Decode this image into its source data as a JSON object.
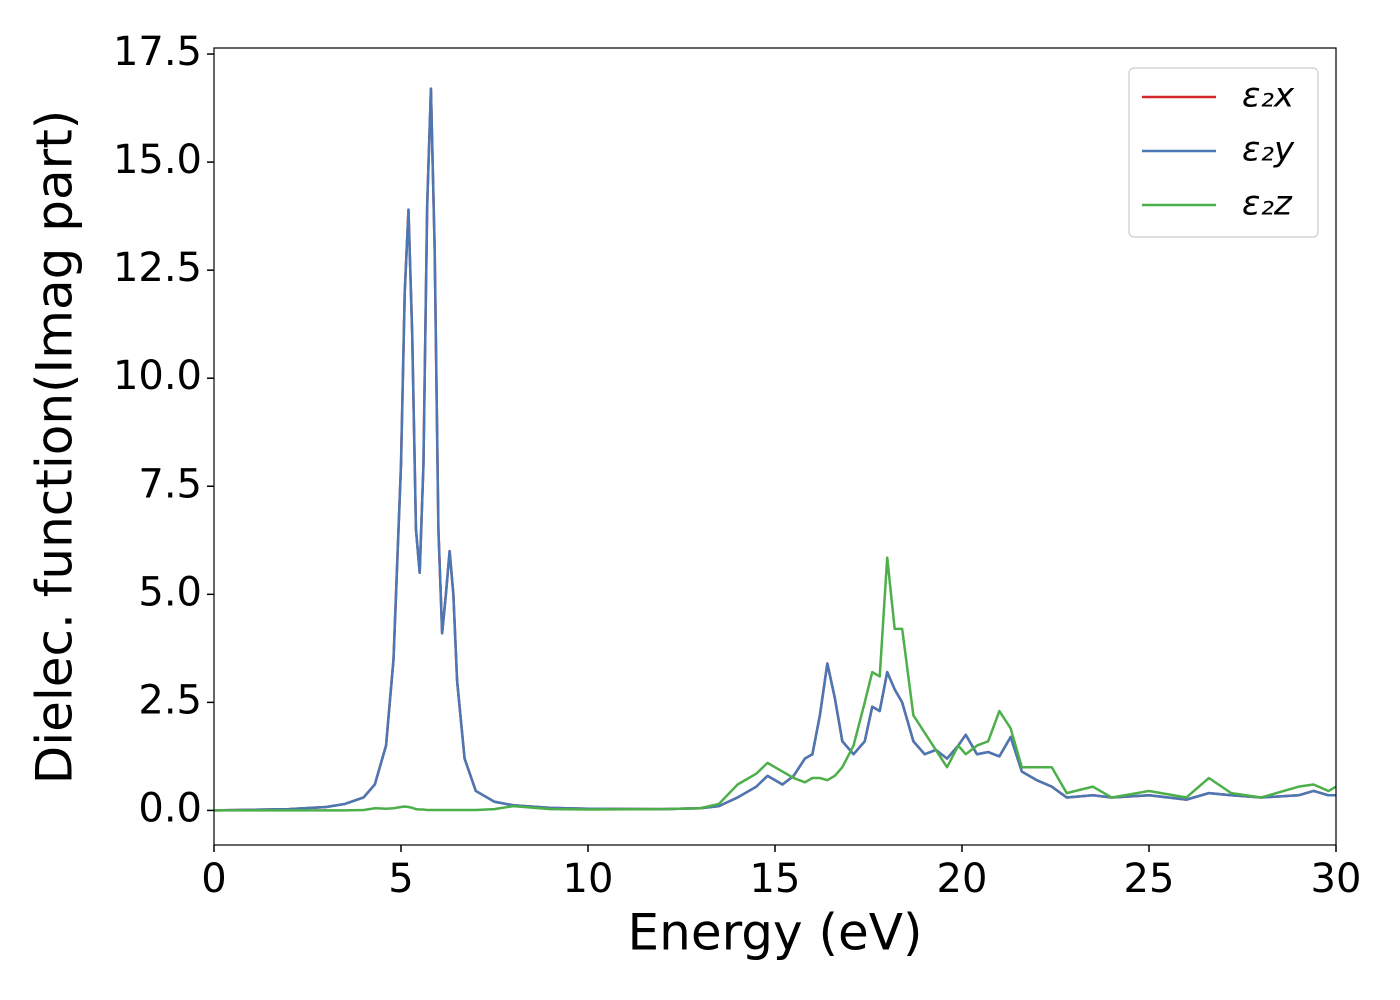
{
  "chart_data": {
    "type": "line",
    "xlabel": "Energy (eV)",
    "ylabel": "Dielec. function(Imag part)",
    "x": [
      0,
      2,
      3,
      3.5,
      4,
      4.3,
      4.6,
      4.8,
      5.0,
      5.1,
      5.2,
      5.3,
      5.4,
      5.5,
      5.6,
      5.7,
      5.8,
      5.9,
      6.0,
      6.1,
      6.2,
      6.3,
      6.4,
      6.5,
      6.7,
      7.0,
      7.5,
      8,
      9,
      10,
      12,
      13,
      13.5,
      14,
      14.5,
      14.8,
      15.2,
      15.5,
      15.8,
      16,
      16.2,
      16.4,
      16.6,
      16.8,
      17.1,
      17.4,
      17.6,
      17.8,
      18.0,
      18.2,
      18.4,
      18.7,
      19,
      19.3,
      19.6,
      19.9,
      20.1,
      20.4,
      20.7,
      21,
      21.3,
      21.6,
      22,
      22.4,
      22.8,
      23.5,
      24,
      25,
      26,
      26.6,
      27.2,
      28,
      29,
      29.4,
      29.8,
      30
    ],
    "series": [
      {
        "name": "ε₂x",
        "color": "#d62728",
        "values": [
          0,
          0.03,
          0.08,
          0.15,
          0.3,
          0.6,
          1.5,
          3.5,
          8,
          12,
          13.9,
          11,
          6.5,
          5.5,
          8,
          14,
          16.7,
          13,
          6.5,
          4.1,
          5,
          6.0,
          5,
          3,
          1.2,
          0.45,
          0.2,
          0.12,
          0.06,
          0.04,
          0.03,
          0.05,
          0.1,
          0.3,
          0.55,
          0.8,
          0.6,
          0.8,
          1.2,
          1.3,
          2.2,
          3.4,
          2.6,
          1.6,
          1.3,
          1.6,
          2.4,
          2.3,
          3.2,
          2.8,
          2.5,
          1.6,
          1.3,
          1.4,
          1.2,
          1.5,
          1.75,
          1.3,
          1.35,
          1.25,
          1.7,
          0.9,
          0.7,
          0.55,
          0.3,
          0.35,
          0.3,
          0.35,
          0.25,
          0.4,
          0.35,
          0.3,
          0.35,
          0.45,
          0.35,
          0.35
        ]
      },
      {
        "name": "ε₂y",
        "color": "#4a78b4",
        "values": [
          0,
          0.03,
          0.08,
          0.15,
          0.3,
          0.6,
          1.5,
          3.5,
          8,
          12,
          13.9,
          11,
          6.5,
          5.5,
          8,
          14,
          16.7,
          13,
          6.5,
          4.1,
          5,
          6.0,
          5,
          3,
          1.2,
          0.45,
          0.2,
          0.12,
          0.06,
          0.04,
          0.03,
          0.05,
          0.1,
          0.3,
          0.55,
          0.8,
          0.6,
          0.8,
          1.2,
          1.3,
          2.2,
          3.4,
          2.6,
          1.6,
          1.3,
          1.6,
          2.4,
          2.3,
          3.2,
          2.8,
          2.5,
          1.6,
          1.3,
          1.4,
          1.2,
          1.5,
          1.75,
          1.3,
          1.35,
          1.25,
          1.7,
          0.9,
          0.7,
          0.55,
          0.3,
          0.35,
          0.3,
          0.35,
          0.25,
          0.4,
          0.35,
          0.3,
          0.35,
          0.45,
          0.35,
          0.35
        ]
      },
      {
        "name": "ε₂z",
        "color": "#4daf4a",
        "values": [
          0,
          0,
          0,
          0,
          0.01,
          0.05,
          0.04,
          0.05,
          0.08,
          0.09,
          0.08,
          0.06,
          0.03,
          0.02,
          0.02,
          0.01,
          0.01,
          0.01,
          0.01,
          0.01,
          0.01,
          0.01,
          0.01,
          0.01,
          0.01,
          0.01,
          0.03,
          0.1,
          0.03,
          0.02,
          0.03,
          0.05,
          0.15,
          0.6,
          0.85,
          1.1,
          0.9,
          0.75,
          0.65,
          0.75,
          0.75,
          0.7,
          0.8,
          1.0,
          1.5,
          2.5,
          3.2,
          3.1,
          5.85,
          4.2,
          4.2,
          2.2,
          1.8,
          1.4,
          1.0,
          1.5,
          1.3,
          1.5,
          1.6,
          2.3,
          1.9,
          1.0,
          1.0,
          1.0,
          0.4,
          0.55,
          0.3,
          0.45,
          0.3,
          0.75,
          0.4,
          0.3,
          0.55,
          0.6,
          0.45,
          0.55
        ]
      }
    ],
    "xlim": [
      0,
      30
    ],
    "ylim": [
      -0.8,
      17.64
    ],
    "xticks": [
      0,
      5,
      10,
      15,
      20,
      25,
      30
    ],
    "yticks": [
      {
        "value": 0,
        "label": "0.0"
      },
      2.5,
      {
        "value": 5,
        "label": "5.0"
      },
      7.5,
      {
        "value": 10,
        "label": "10.0"
      },
      12.5,
      {
        "value": 15,
        "label": "15.0"
      },
      17.5
    ],
    "legend": "upper right"
  }
}
